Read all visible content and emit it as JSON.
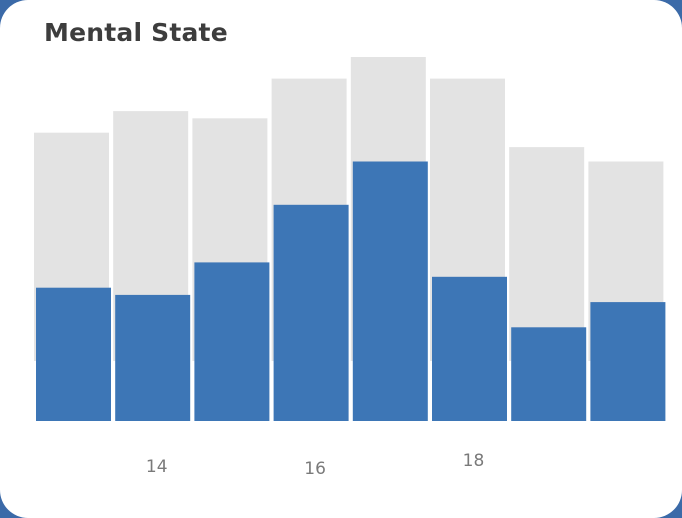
{
  "card": {
    "title": "Mental State"
  },
  "colors": {
    "background_bar": "#e3e3e3",
    "value_bar": "#3d76b6",
    "frame": "#3b6aa8"
  },
  "chart_data": {
    "type": "bar",
    "title": "Mental State",
    "xlabel": "",
    "ylabel": "",
    "x": [
      13,
      14,
      15,
      16,
      17,
      18,
      19,
      20
    ],
    "x_tick_labels": [
      {
        "x": 14,
        "label": "14"
      },
      {
        "x": 16,
        "label": "16"
      },
      {
        "x": 18,
        "label": "18"
      }
    ],
    "background_values": [
      80,
      86,
      84,
      95,
      101,
      95,
      76,
      72
    ],
    "values": [
      37,
      35,
      44,
      60,
      72,
      40,
      26,
      33
    ],
    "ylim": [
      0,
      101
    ],
    "grid": false,
    "legend": "none"
  }
}
